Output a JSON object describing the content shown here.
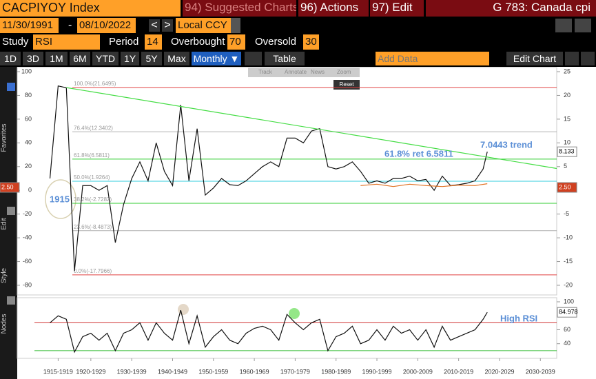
{
  "header": {
    "ticker": "CACPIYOY Index",
    "menu": [
      "94) Suggested Charts",
      "96) Actions",
      "97) Edit"
    ],
    "page_title": "G 783: Canada cpi"
  },
  "controls": {
    "start_date": "11/30/1991",
    "end_date": "08/10/2022",
    "currency": "Local CCY",
    "study_label": "Study",
    "study": "RSI",
    "period_label": "Period",
    "period": 14,
    "overbought_label": "Overbought",
    "overbought": 70,
    "oversold_label": "Oversold",
    "oversold": 30,
    "ranges": [
      "1D",
      "3D",
      "1M",
      "6M",
      "YTD",
      "1Y",
      "5Y",
      "Max"
    ],
    "frequency": "Monthly ▼",
    "table": "Table",
    "add_data": "Add Data",
    "edit_chart": "Edit Chart",
    "tools": [
      "Track",
      "Annotate",
      "News",
      "Zoom"
    ],
    "reset": "Reset",
    "sidebar": [
      "Favorites",
      "Edit",
      "Style",
      "Nodes"
    ]
  },
  "chart_data": [
    {
      "type": "line",
      "x": [
        1915,
        1917,
        1919,
        1921,
        1923,
        1925,
        1927,
        1929,
        1931,
        1933,
        1935,
        1937,
        1939,
        1941,
        1943,
        1945,
        1947,
        1949,
        1951,
        1953,
        1955,
        1957,
        1959,
        1961,
        1963,
        1965,
        1967,
        1969,
        1971,
        1973,
        1975,
        1977,
        1979,
        1981,
        1983,
        1985,
        1987,
        1989,
        1991,
        1993,
        1995,
        1997,
        1999,
        2001,
        2003,
        2005,
        2007,
        2009,
        2011,
        2013,
        2015,
        2017,
        2019,
        2021,
        2022
      ],
      "xlim": [
        1911.2,
        2039
      ],
      "xticks": [
        {
          "value": 1917,
          "label": "1915-1919"
        },
        {
          "value": 1925,
          "label": "1920-1929"
        },
        {
          "value": 1935,
          "label": "1930-1939"
        },
        {
          "value": 1945,
          "label": "1940-1949"
        },
        {
          "value": 1955,
          "label": "1950-1959"
        },
        {
          "value": 1965,
          "label": "1960-1969"
        },
        {
          "value": 1975,
          "label": "1970-1979"
        },
        {
          "value": 1985,
          "label": "1980-1989"
        },
        {
          "value": 1995,
          "label": "1990-1999"
        },
        {
          "value": 2005,
          "label": "2000-2009"
        },
        {
          "value": 2015,
          "label": "2010-2019"
        },
        {
          "value": 2025,
          "label": "2020-2029"
        },
        {
          "value": 2035,
          "label": "2030-2039"
        }
      ],
      "ylim": [
        -80,
        100
      ],
      "yticks": [
        100,
        80,
        60,
        40,
        20,
        0,
        -20,
        -40,
        -60,
        -80
      ],
      "y2lim": [
        -20,
        25
      ],
      "y2ticks": [
        25,
        20,
        15,
        10,
        5,
        0,
        -5,
        -10,
        -15,
        -20
      ],
      "series": [
        {
          "color": "#111111",
          "axis": "y2",
          "values": [
            2.5,
            22,
            21.6,
            -17,
            1,
            1,
            0,
            1,
            -11,
            -3,
            2.5,
            6,
            2,
            10,
            4,
            1,
            18,
            2,
            13,
            -1,
            0.5,
            2.5,
            1.2,
            1,
            2,
            3.5,
            5,
            6,
            5,
            11,
            11,
            10,
            12.5,
            13,
            5,
            4.5,
            5,
            6,
            4,
            1.5,
            2,
            1.5,
            2.5,
            2.5,
            3,
            2,
            2.3,
            0,
            3,
            1,
            1.2,
            1.5,
            2,
            4.5,
            8.133
          ]
        },
        {
          "color": "#e07020",
          "axis": "y2",
          "x": [
            1991,
            1995,
            1999,
            2003,
            2007,
            2011,
            2015,
            2019,
            2022
          ],
          "values": [
            1,
            1.3,
            0.8,
            1.3,
            1,
            0.8,
            1.1,
            1,
            1.4
          ]
        }
      ],
      "levels": [
        {
          "label": "100.0%(21.6495)",
          "value": 21.6495,
          "color": "#e04040"
        },
        {
          "label": "76.4%(12.3402)",
          "value": 12.3402,
          "color": "#b0b0b0"
        },
        {
          "label": "61.8%(6.5811)",
          "value": 6.5811,
          "color": "#33cc33"
        },
        {
          "label": "50.0%(1.9264)",
          "value": 1.9264,
          "color": "#33ccdd"
        },
        {
          "label": "38.2%(-2.7282)",
          "value": -2.7282,
          "color": "#33cc33"
        },
        {
          "label": "23.6%(-8.4873)",
          "value": -8.4873,
          "color": "#b0b0b0"
        },
        {
          "label": "0.0%(-17.7966)",
          "value": -17.7966,
          "color": "#e04040"
        }
      ],
      "trend": {
        "color": "#44dd44",
        "x": [
          1919,
          2039
        ],
        "values": [
          21.6495,
          4.6
        ]
      },
      "annotations": [
        "61.8% ret 6.5811",
        "7.0443 trend",
        "1915"
      ],
      "level_box": "2.50"
    },
    {
      "type": "line",
      "x": [
        1915,
        1917,
        1919,
        1921,
        1923,
        1925,
        1927,
        1929,
        1931,
        1933,
        1935,
        1937,
        1939,
        1941,
        1943,
        1945,
        1947,
        1949,
        1951,
        1953,
        1955,
        1957,
        1959,
        1961,
        1963,
        1965,
        1967,
        1969,
        1971,
        1973,
        1975,
        1977,
        1979,
        1981,
        1983,
        1985,
        1987,
        1989,
        1991,
        1993,
        1995,
        1997,
        1999,
        2001,
        2003,
        2005,
        2007,
        2009,
        2011,
        2013,
        2015,
        2017,
        2019,
        2021,
        2022
      ],
      "ylim": [
        20,
        100
      ],
      "yticks": [
        100,
        80,
        60,
        40
      ],
      "series": [
        {
          "color": "#111111",
          "values": [
            70,
            80,
            75,
            28,
            50,
            55,
            45,
            55,
            30,
            55,
            60,
            70,
            45,
            70,
            55,
            45,
            88,
            40,
            80,
            35,
            50,
            60,
            45,
            40,
            55,
            62,
            65,
            60,
            45,
            82,
            70,
            60,
            70,
            75,
            30,
            50,
            55,
            65,
            40,
            45,
            60,
            45,
            65,
            55,
            60,
            45,
            60,
            35,
            65,
            45,
            50,
            55,
            60,
            75,
            84.978
          ]
        }
      ],
      "annotations": [
        "High RSI"
      ]
    }
  ]
}
